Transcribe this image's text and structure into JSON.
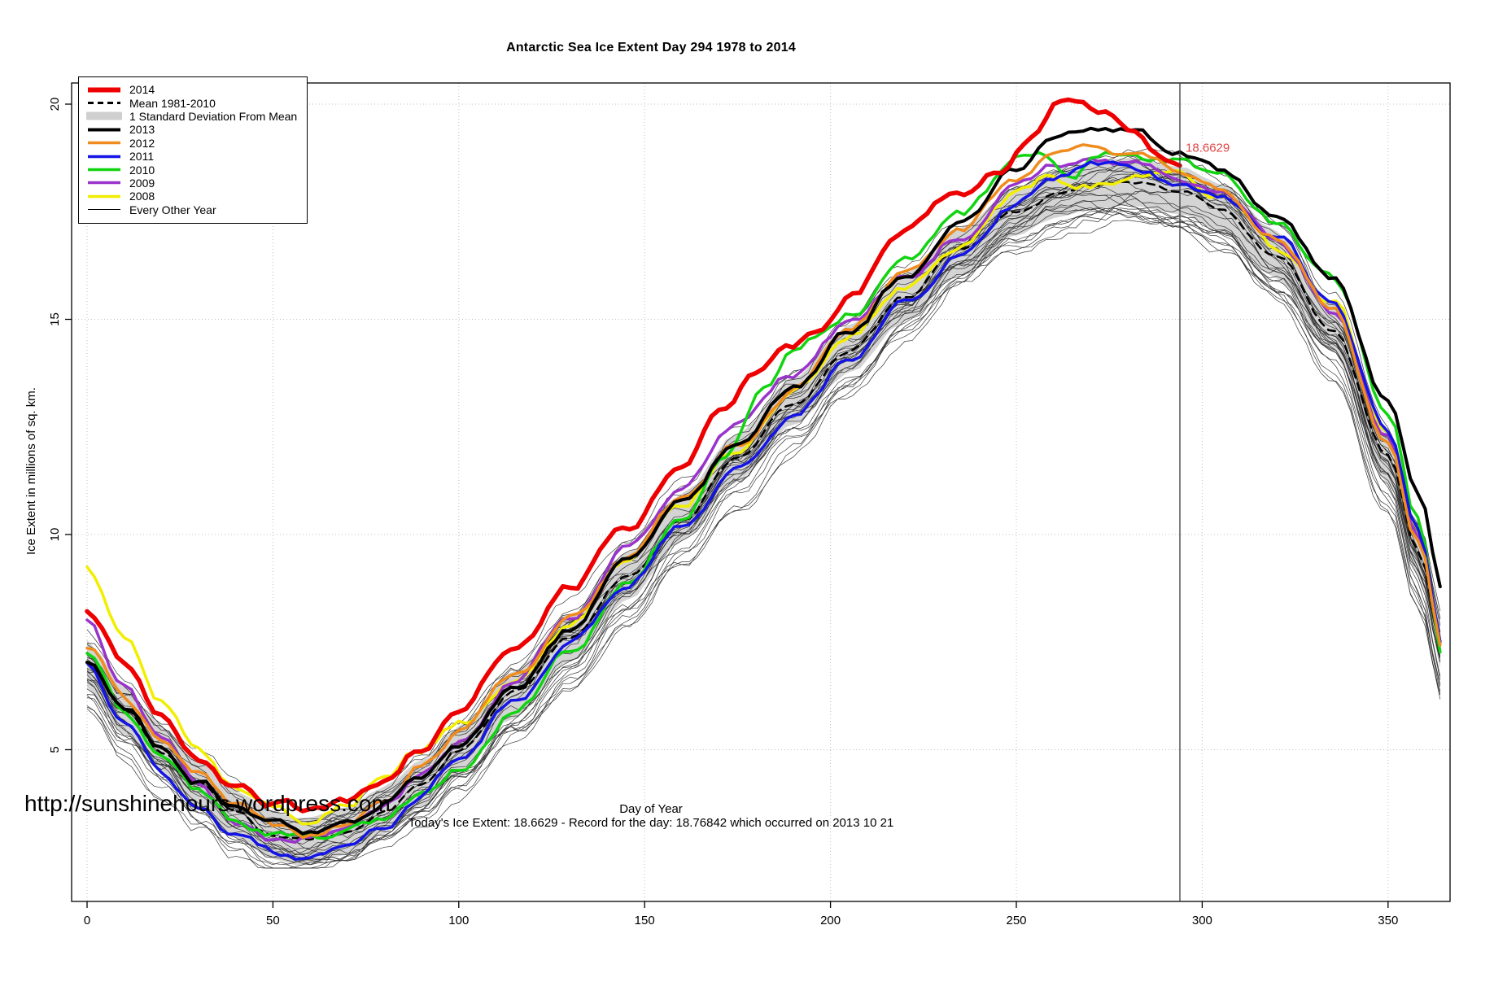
{
  "page": {
    "url": "http://sunshinehours.wordpress.com",
    "status_line": "Today's Ice Extent: 18.6629  - Record for the day: 18.76842 which occurred on 2013 10 21"
  },
  "chart_data": {
    "type": "line",
    "title": "Antarctic Sea Ice Extent Day 294 1978 to 2014",
    "xlabel": "Day of Year",
    "ylabel": "Ice Extent in millions of sq. km.",
    "xlim": [
      0,
      366
    ],
    "ylim": [
      1.5,
      20.6
    ],
    "xticks": [
      0,
      50,
      100,
      150,
      200,
      250,
      300,
      350
    ],
    "yticks": [
      5,
      10,
      15,
      20
    ],
    "grid": "dotted",
    "legend_position": "top-left",
    "marker": {
      "day": 294,
      "value": 18.6629,
      "label": "18.6629",
      "color": "#e04545"
    },
    "band": {
      "label": "1 Standard Deviation From Mean",
      "color": "#d4d4d4",
      "halfwidth": 0.55,
      "base_series": "Mean 1981-2010"
    },
    "background_series": {
      "label": "Every Other Year",
      "count": 27,
      "color": "#141414",
      "width": 0.7
    },
    "series": [
      {
        "name": "Mean 1981-2010",
        "color": "#000000",
        "width": 2.6,
        "dash": "9,7",
        "jitter": 0.05,
        "points": [
          [
            0,
            7.0
          ],
          [
            10,
            5.9
          ],
          [
            20,
            5.0
          ],
          [
            30,
            4.2
          ],
          [
            40,
            3.5
          ],
          [
            50,
            3.0
          ],
          [
            58,
            2.85
          ],
          [
            70,
            3.1
          ],
          [
            80,
            3.6
          ],
          [
            90,
            4.2
          ],
          [
            100,
            5.0
          ],
          [
            115,
            6.3
          ],
          [
            130,
            7.6
          ],
          [
            145,
            9.0
          ],
          [
            160,
            10.4
          ],
          [
            175,
            11.8
          ],
          [
            190,
            13.1
          ],
          [
            205,
            14.3
          ],
          [
            220,
            15.5
          ],
          [
            235,
            16.6
          ],
          [
            250,
            17.5
          ],
          [
            260,
            17.9
          ],
          [
            270,
            18.1
          ],
          [
            280,
            18.2
          ],
          [
            294,
            18.0
          ],
          [
            305,
            17.6
          ],
          [
            320,
            16.5
          ],
          [
            335,
            14.8
          ],
          [
            350,
            11.8
          ],
          [
            358,
            9.6
          ],
          [
            365,
            7.3
          ]
        ]
      },
      {
        "name": "2008",
        "color": "#f2ee00",
        "width": 3.5,
        "dash": "",
        "jitter": 0.09,
        "points": [
          [
            0,
            9.3
          ],
          [
            10,
            7.6
          ],
          [
            20,
            6.1
          ],
          [
            30,
            5.0
          ],
          [
            40,
            4.1
          ],
          [
            50,
            3.6
          ],
          [
            60,
            3.3
          ],
          [
            70,
            3.7
          ],
          [
            80,
            4.4
          ],
          [
            88,
            5.0
          ],
          [
            100,
            5.6
          ],
          [
            115,
            6.6
          ],
          [
            130,
            7.9
          ],
          [
            145,
            9.5
          ],
          [
            160,
            10.8
          ],
          [
            175,
            12.0
          ],
          [
            190,
            13.3
          ],
          [
            205,
            14.7
          ],
          [
            220,
            15.8
          ],
          [
            235,
            16.7
          ],
          [
            250,
            17.9
          ],
          [
            258,
            18.2
          ],
          [
            266,
            18.0
          ],
          [
            276,
            18.2
          ],
          [
            286,
            18.3
          ],
          [
            294,
            18.4
          ],
          [
            305,
            17.9
          ],
          [
            320,
            16.7
          ],
          [
            335,
            15.4
          ],
          [
            350,
            12.4
          ],
          [
            358,
            10.1
          ],
          [
            365,
            7.3
          ]
        ]
      },
      {
        "name": "2009",
        "color": "#9933cc",
        "width": 3.5,
        "dash": "",
        "jitter": 0.08,
        "points": [
          [
            0,
            8.0
          ],
          [
            10,
            6.5
          ],
          [
            20,
            5.2
          ],
          [
            30,
            4.1
          ],
          [
            40,
            3.3
          ],
          [
            50,
            2.85
          ],
          [
            60,
            2.95
          ],
          [
            70,
            3.2
          ],
          [
            80,
            3.7
          ],
          [
            90,
            4.4
          ],
          [
            100,
            5.2
          ],
          [
            115,
            6.6
          ],
          [
            130,
            8.1
          ],
          [
            145,
            9.7
          ],
          [
            160,
            11.1
          ],
          [
            175,
            12.5
          ],
          [
            190,
            13.7
          ],
          [
            205,
            14.9
          ],
          [
            220,
            16.0
          ],
          [
            235,
            17.0
          ],
          [
            250,
            18.1
          ],
          [
            260,
            18.6
          ],
          [
            270,
            18.8
          ],
          [
            280,
            18.6
          ],
          [
            294,
            18.3
          ],
          [
            305,
            17.9
          ],
          [
            320,
            16.8
          ],
          [
            335,
            15.2
          ],
          [
            350,
            12.3
          ],
          [
            358,
            10.0
          ],
          [
            365,
            7.4
          ]
        ]
      },
      {
        "name": "2010",
        "color": "#11d411",
        "width": 3.5,
        "dash": "",
        "jitter": 0.09,
        "points": [
          [
            0,
            7.2
          ],
          [
            10,
            5.9
          ],
          [
            20,
            4.8
          ],
          [
            30,
            4.0
          ],
          [
            40,
            3.4
          ],
          [
            50,
            3.1
          ],
          [
            60,
            3.0
          ],
          [
            70,
            3.1
          ],
          [
            80,
            3.4
          ],
          [
            90,
            3.9
          ],
          [
            100,
            4.6
          ],
          [
            115,
            5.9
          ],
          [
            130,
            7.3
          ],
          [
            145,
            8.9
          ],
          [
            160,
            10.4
          ],
          [
            172,
            11.8
          ],
          [
            182,
            13.3
          ],
          [
            190,
            14.3
          ],
          [
            198,
            14.7
          ],
          [
            205,
            15.1
          ],
          [
            220,
            16.3
          ],
          [
            235,
            17.4
          ],
          [
            250,
            18.7
          ],
          [
            257,
            18.9
          ],
          [
            265,
            18.4
          ],
          [
            272,
            18.9
          ],
          [
            280,
            18.8
          ],
          [
            294,
            18.7
          ],
          [
            305,
            18.3
          ],
          [
            320,
            17.2
          ],
          [
            335,
            15.9
          ],
          [
            350,
            12.9
          ],
          [
            358,
            10.4
          ],
          [
            365,
            7.2
          ]
        ]
      },
      {
        "name": "2011",
        "color": "#1414e6",
        "width": 3.5,
        "dash": "",
        "jitter": 0.08,
        "points": [
          [
            0,
            7.0
          ],
          [
            10,
            5.6
          ],
          [
            20,
            4.5
          ],
          [
            30,
            3.6
          ],
          [
            40,
            3.0
          ],
          [
            50,
            2.6
          ],
          [
            60,
            2.45
          ],
          [
            70,
            2.7
          ],
          [
            80,
            3.2
          ],
          [
            90,
            3.9
          ],
          [
            100,
            4.8
          ],
          [
            115,
            6.1
          ],
          [
            130,
            7.4
          ],
          [
            145,
            8.8
          ],
          [
            160,
            10.2
          ],
          [
            175,
            11.5
          ],
          [
            190,
            12.8
          ],
          [
            205,
            14.0
          ],
          [
            220,
            15.3
          ],
          [
            235,
            16.5
          ],
          [
            250,
            17.7
          ],
          [
            260,
            18.3
          ],
          [
            270,
            18.6
          ],
          [
            280,
            18.6
          ],
          [
            294,
            18.2
          ],
          [
            305,
            17.8
          ],
          [
            320,
            16.9
          ],
          [
            335,
            15.4
          ],
          [
            350,
            12.5
          ],
          [
            358,
            10.2
          ],
          [
            365,
            7.5
          ]
        ]
      },
      {
        "name": "2012",
        "color": "#f08c1e",
        "width": 3.5,
        "dash": "",
        "jitter": 0.08,
        "points": [
          [
            0,
            7.4
          ],
          [
            10,
            6.2
          ],
          [
            20,
            5.2
          ],
          [
            30,
            4.4
          ],
          [
            40,
            3.7
          ],
          [
            50,
            3.2
          ],
          [
            60,
            3.0
          ],
          [
            70,
            3.3
          ],
          [
            80,
            3.9
          ],
          [
            90,
            4.6
          ],
          [
            100,
            5.4
          ],
          [
            115,
            6.7
          ],
          [
            130,
            8.0
          ],
          [
            145,
            9.4
          ],
          [
            160,
            10.8
          ],
          [
            175,
            12.1
          ],
          [
            190,
            13.4
          ],
          [
            205,
            14.8
          ],
          [
            220,
            16.0
          ],
          [
            235,
            17.1
          ],
          [
            250,
            18.3
          ],
          [
            260,
            18.9
          ],
          [
            270,
            19.1
          ],
          [
            280,
            18.9
          ],
          [
            294,
            18.5
          ],
          [
            305,
            18.0
          ],
          [
            320,
            16.9
          ],
          [
            335,
            15.2
          ],
          [
            350,
            12.2
          ],
          [
            358,
            9.9
          ],
          [
            365,
            7.3
          ]
        ]
      },
      {
        "name": "2013",
        "color": "#000000",
        "width": 4.0,
        "dash": "",
        "jitter": 0.08,
        "points": [
          [
            0,
            7.0
          ],
          [
            10,
            6.0
          ],
          [
            20,
            5.1
          ],
          [
            30,
            4.3
          ],
          [
            40,
            3.7
          ],
          [
            50,
            3.3
          ],
          [
            60,
            3.1
          ],
          [
            70,
            3.3
          ],
          [
            80,
            3.8
          ],
          [
            90,
            4.4
          ],
          [
            100,
            5.1
          ],
          [
            115,
            6.4
          ],
          [
            130,
            7.8
          ],
          [
            145,
            9.3
          ],
          [
            160,
            10.7
          ],
          [
            175,
            12.1
          ],
          [
            190,
            13.4
          ],
          [
            205,
            14.7
          ],
          [
            220,
            16.0
          ],
          [
            235,
            17.3
          ],
          [
            250,
            18.5
          ],
          [
            260,
            19.1
          ],
          [
            270,
            19.4
          ],
          [
            280,
            19.4
          ],
          [
            294,
            18.9
          ],
          [
            305,
            18.5
          ],
          [
            320,
            17.4
          ],
          [
            335,
            15.9
          ],
          [
            350,
            13.1
          ],
          [
            358,
            11.0
          ],
          [
            365,
            8.8
          ]
        ]
      },
      {
        "name": "2014",
        "color": "#ee0000",
        "width": 5.5,
        "dash": "",
        "jitter": 0.09,
        "points": [
          [
            0,
            8.2
          ],
          [
            10,
            7.0
          ],
          [
            20,
            5.9
          ],
          [
            30,
            4.9
          ],
          [
            40,
            4.1
          ],
          [
            50,
            3.7
          ],
          [
            60,
            3.6
          ],
          [
            70,
            3.8
          ],
          [
            80,
            4.3
          ],
          [
            90,
            5.1
          ],
          [
            100,
            6.0
          ],
          [
            115,
            7.4
          ],
          [
            130,
            8.8
          ],
          [
            145,
            10.2
          ],
          [
            160,
            11.7
          ],
          [
            172,
            13.0
          ],
          [
            180,
            13.9
          ],
          [
            188,
            14.4
          ],
          [
            196,
            14.6
          ],
          [
            205,
            15.5
          ],
          [
            220,
            17.0
          ],
          [
            235,
            18.0
          ],
          [
            245,
            18.5
          ],
          [
            255,
            19.3
          ],
          [
            262,
            20.1
          ],
          [
            268,
            19.9
          ],
          [
            275,
            19.8
          ],
          [
            282,
            19.4
          ],
          [
            288,
            19.0
          ],
          [
            294,
            18.66
          ]
        ]
      }
    ],
    "legend": [
      {
        "label": "2014",
        "kind": "line",
        "color": "#ee0000",
        "width": 6,
        "dash": ""
      },
      {
        "label": "Mean 1981-2010",
        "kind": "line",
        "color": "#000000",
        "width": 3,
        "dash": "7,5"
      },
      {
        "label": "1 Standard Deviation From Mean",
        "kind": "band",
        "color": "#cfcfcf",
        "width": 10,
        "dash": ""
      },
      {
        "label": "2013",
        "kind": "line",
        "color": "#000000",
        "width": 4,
        "dash": ""
      },
      {
        "label": "2012",
        "kind": "line",
        "color": "#f08c1e",
        "width": 3.5,
        "dash": ""
      },
      {
        "label": "2011",
        "kind": "line",
        "color": "#1414e6",
        "width": 3.5,
        "dash": ""
      },
      {
        "label": "2010",
        "kind": "line",
        "color": "#11d411",
        "width": 3.5,
        "dash": ""
      },
      {
        "label": "2009",
        "kind": "line",
        "color": "#9933cc",
        "width": 3.5,
        "dash": ""
      },
      {
        "label": "2008",
        "kind": "line",
        "color": "#f2ee00",
        "width": 3.5,
        "dash": ""
      },
      {
        "label": "Every Other Year",
        "kind": "line",
        "color": "#000000",
        "width": 1,
        "dash": ""
      }
    ]
  }
}
